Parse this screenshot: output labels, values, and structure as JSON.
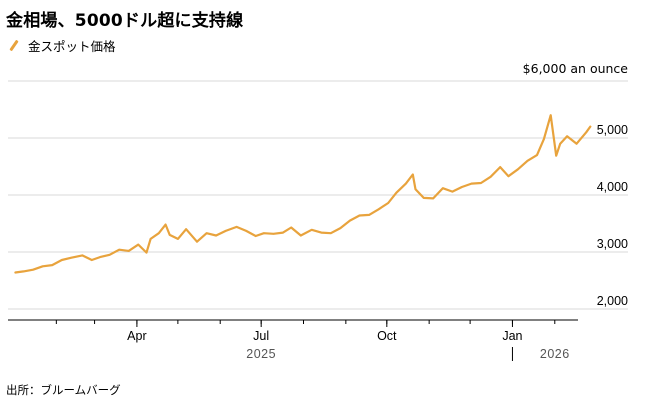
{
  "title": "金相場、5000ドル超に支持線",
  "legend": {
    "label": "金スポット価格",
    "icon": "line-swatch-icon"
  },
  "source": "出所：ブルームバーグ",
  "colors": {
    "series": "#e8a33d",
    "grid": "#d9d9d9",
    "axis": "#000000"
  },
  "chart_data": {
    "type": "line",
    "title": "金相場、5000ドル超に支持線",
    "unit_label": "$6,000 an ounce",
    "ylim": [
      2000,
      6000
    ],
    "y_ticks": [
      {
        "value": 6000,
        "label": "$6,000 an ounce"
      },
      {
        "value": 5000,
        "label": "5,000"
      },
      {
        "value": 4000,
        "label": "4,000"
      },
      {
        "value": 3000,
        "label": "3,000"
      },
      {
        "value": 2000,
        "label": "2,000"
      }
    ],
    "xlim": [
      "2025-01-01",
      "2026-02-18"
    ],
    "x_ticks": [
      {
        "date": "2025-04-01",
        "label": "Apr"
      },
      {
        "date": "2025-07-01",
        "label": "Jul"
      },
      {
        "date": "2025-10-01",
        "label": "Oct"
      },
      {
        "date": "2026-01-01",
        "label": "Jan"
      }
    ],
    "years": [
      {
        "date": "2025-07-01",
        "label": "2025"
      },
      {
        "date": "2026-02-01",
        "label": "2026"
      }
    ],
    "grid": true,
    "legend_position": "top-left",
    "series": [
      {
        "name": "金スポット価格",
        "points": [
          [
            "2025-01-02",
            2640
          ],
          [
            "2025-01-08",
            2660
          ],
          [
            "2025-01-15",
            2690
          ],
          [
            "2025-01-22",
            2750
          ],
          [
            "2025-01-29",
            2770
          ],
          [
            "2025-02-05",
            2860
          ],
          [
            "2025-02-12",
            2900
          ],
          [
            "2025-02-20",
            2940
          ],
          [
            "2025-02-27",
            2860
          ],
          [
            "2025-03-05",
            2910
          ],
          [
            "2025-03-12",
            2950
          ],
          [
            "2025-03-19",
            3040
          ],
          [
            "2025-03-26",
            3020
          ],
          [
            "2025-04-02",
            3130
          ],
          [
            "2025-04-08",
            2990
          ],
          [
            "2025-04-11",
            3230
          ],
          [
            "2025-04-17",
            3330
          ],
          [
            "2025-04-22",
            3480
          ],
          [
            "2025-04-25",
            3300
          ],
          [
            "2025-05-01",
            3230
          ],
          [
            "2025-05-07",
            3400
          ],
          [
            "2025-05-15",
            3180
          ],
          [
            "2025-05-22",
            3330
          ],
          [
            "2025-05-29",
            3290
          ],
          [
            "2025-06-05",
            3370
          ],
          [
            "2025-06-13",
            3440
          ],
          [
            "2025-06-20",
            3370
          ],
          [
            "2025-06-27",
            3280
          ],
          [
            "2025-07-03",
            3330
          ],
          [
            "2025-07-10",
            3320
          ],
          [
            "2025-07-17",
            3340
          ],
          [
            "2025-07-23",
            3430
          ],
          [
            "2025-07-30",
            3290
          ],
          [
            "2025-08-07",
            3390
          ],
          [
            "2025-08-14",
            3340
          ],
          [
            "2025-08-21",
            3330
          ],
          [
            "2025-08-28",
            3420
          ],
          [
            "2025-09-04",
            3550
          ],
          [
            "2025-09-11",
            3640
          ],
          [
            "2025-09-18",
            3650
          ],
          [
            "2025-09-25",
            3750
          ],
          [
            "2025-10-02",
            3860
          ],
          [
            "2025-10-08",
            4040
          ],
          [
            "2025-10-15",
            4200
          ],
          [
            "2025-10-20",
            4360
          ],
          [
            "2025-10-22",
            4100
          ],
          [
            "2025-10-28",
            3950
          ],
          [
            "2025-11-04",
            3940
          ],
          [
            "2025-11-11",
            4120
          ],
          [
            "2025-11-18",
            4060
          ],
          [
            "2025-11-25",
            4140
          ],
          [
            "2025-12-02",
            4200
          ],
          [
            "2025-12-09",
            4210
          ],
          [
            "2025-12-16",
            4320
          ],
          [
            "2025-12-23",
            4490
          ],
          [
            "2025-12-29",
            4330
          ],
          [
            "2026-01-05",
            4450
          ],
          [
            "2026-01-12",
            4600
          ],
          [
            "2026-01-19",
            4700
          ],
          [
            "2026-01-24",
            4980
          ],
          [
            "2026-01-29",
            5400
          ],
          [
            "2026-02-02",
            4690
          ],
          [
            "2026-02-05",
            4900
          ],
          [
            "2026-02-10",
            5030
          ],
          [
            "2026-02-17",
            4900
          ],
          [
            "2026-02-24",
            5100
          ],
          [
            "2026-02-27",
            5200
          ]
        ]
      }
    ]
  }
}
